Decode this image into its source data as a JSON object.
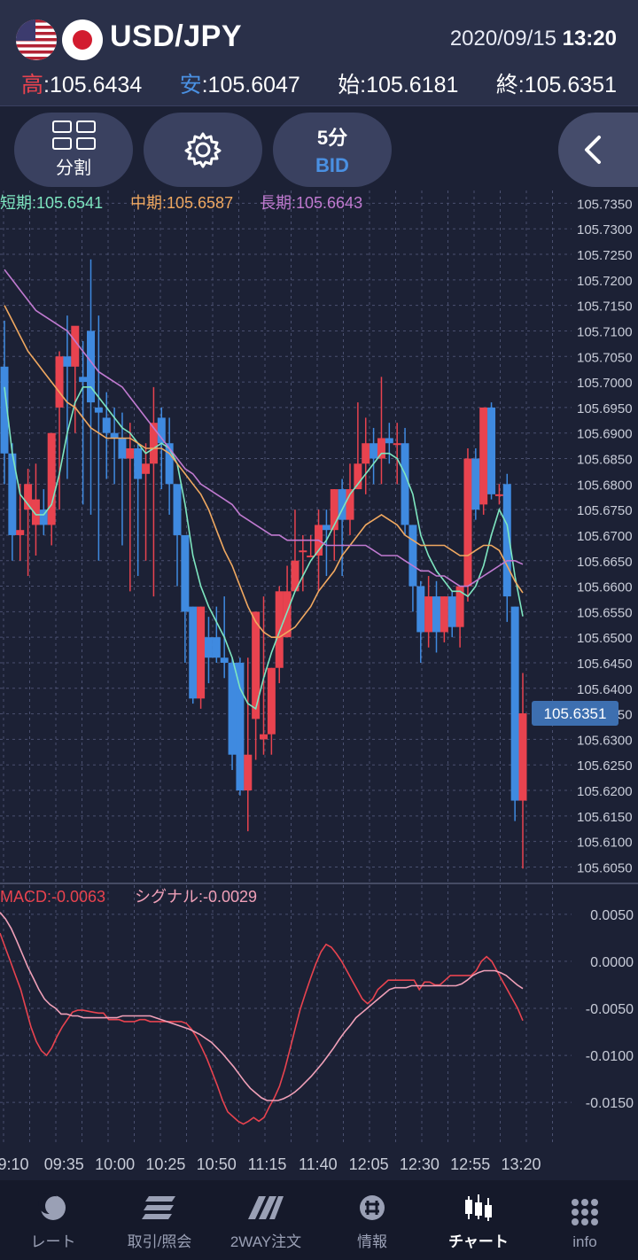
{
  "header": {
    "pair": "USD/JPY",
    "date": "2020/09/15",
    "time": "13:20",
    "high_label": "高",
    "high_value": ":105.6434",
    "low_label": "安",
    "low_value": ":105.6047",
    "open_label": "始",
    "open_value": ":105.6181",
    "close_label": "終",
    "close_value": ":105.6351"
  },
  "toolbar": {
    "split_label": "分割",
    "settings_icon": "gear-icon",
    "timeframe": "5分",
    "price_type": "BID",
    "collapse_icon": "chevron-left-icon"
  },
  "indicators": {
    "short_label": "短期:105.6541",
    "mid_label": "中期:105.6587",
    "long_label": "長期:105.6643",
    "macd_label": "MACD:-0.0063",
    "signal_label": "シグナル:-0.0029",
    "current_price": "105.6351"
  },
  "colors": {
    "background": "#1c2135",
    "up_candle": "#e8434f",
    "down_candle": "#3f8ae0",
    "short_ma": "#7ee6c0",
    "mid_ma": "#f0a860",
    "long_ma": "#c07ad0",
    "macd": "#e8434f",
    "signal": "#f0a0b8"
  },
  "chart_data": {
    "type": "candlestick",
    "price_axis": {
      "labels": [
        "105.7350",
        "105.7300",
        "105.7250",
        "105.7200",
        "105.7150",
        "105.7100",
        "105.7050",
        "105.7000",
        "105.6950",
        "105.6900",
        "105.6850",
        "105.6800",
        "105.6750",
        "105.6700",
        "105.6650",
        "105.6600",
        "105.6550",
        "105.6500",
        "105.6450",
        "105.6400",
        "105.6350",
        "105.6300",
        "105.6250",
        "105.6200",
        "105.6150",
        "105.6100",
        "105.6050"
      ],
      "range": [
        105.603,
        105.7375
      ]
    },
    "macd_axis": {
      "labels": [
        "0.0050",
        "0.0000",
        "-0.0050",
        "-0.0100",
        "-0.0150"
      ],
      "range": [
        -0.0196,
        0.008
      ]
    },
    "time_labels": [
      "9:10",
      "09:35",
      "10:00",
      "10:25",
      "10:50",
      "11:15",
      "11:40",
      "12:05",
      "12:30",
      "12:55",
      "13:20"
    ],
    "candles": [
      {
        "o": 105.703,
        "h": 105.712,
        "l": 105.68,
        "c": 105.686
      },
      {
        "o": 105.686,
        "h": 105.688,
        "l": 105.665,
        "c": 105.67
      },
      {
        "o": 105.67,
        "h": 105.68,
        "l": 105.665,
        "c": 105.671
      },
      {
        "o": 105.675,
        "h": 105.683,
        "l": 105.662,
        "c": 105.68
      },
      {
        "o": 105.672,
        "h": 105.684,
        "l": 105.666,
        "c": 105.677
      },
      {
        "o": 105.675,
        "h": 105.679,
        "l": 105.67,
        "c": 105.672
      },
      {
        "o": 105.672,
        "h": 105.69,
        "l": 105.668,
        "c": 105.69
      },
      {
        "o": 105.695,
        "h": 105.706,
        "l": 105.675,
        "c": 105.705
      },
      {
        "o": 105.705,
        "h": 105.713,
        "l": 105.681,
        "c": 105.703
      },
      {
        "o": 105.703,
        "h": 105.71,
        "l": 105.69,
        "c": 105.711
      },
      {
        "o": 105.701,
        "h": 105.708,
        "l": 105.676,
        "c": 105.7
      },
      {
        "o": 105.71,
        "h": 105.724,
        "l": 105.674,
        "c": 105.696
      },
      {
        "o": 105.695,
        "h": 105.713,
        "l": 105.665,
        "c": 105.694
      },
      {
        "o": 105.693,
        "h": 105.698,
        "l": 105.681,
        "c": 105.69
      },
      {
        "o": 105.69,
        "h": 105.695,
        "l": 105.68,
        "c": 105.689
      },
      {
        "o": 105.689,
        "h": 105.694,
        "l": 105.668,
        "c": 105.685
      },
      {
        "o": 105.685,
        "h": 105.692,
        "l": 105.659,
        "c": 105.687
      },
      {
        "o": 105.687,
        "h": 105.688,
        "l": 105.662,
        "c": 105.681
      },
      {
        "o": 105.682,
        "h": 105.688,
        "l": 105.665,
        "c": 105.684
      },
      {
        "o": 105.684,
        "h": 105.699,
        "l": 105.658,
        "c": 105.692
      },
      {
        "o": 105.693,
        "h": 105.695,
        "l": 105.679,
        "c": 105.688
      },
      {
        "o": 105.688,
        "h": 105.693,
        "l": 105.674,
        "c": 105.68
      },
      {
        "o": 105.68,
        "h": 105.68,
        "l": 105.66,
        "c": 105.67
      },
      {
        "o": 105.67,
        "h": 105.67,
        "l": 105.645,
        "c": 105.655
      },
      {
        "o": 105.656,
        "h": 105.656,
        "l": 105.637,
        "c": 105.638
      },
      {
        "o": 105.638,
        "h": 105.656,
        "l": 105.636,
        "c": 105.656
      },
      {
        "o": 105.65,
        "h": 105.654,
        "l": 105.641,
        "c": 105.646
      },
      {
        "o": 105.65,
        "h": 105.656,
        "l": 105.645,
        "c": 105.646
      },
      {
        "o": 105.646,
        "h": 105.658,
        "l": 105.642,
        "c": 105.645
      },
      {
        "o": 105.645,
        "h": 105.646,
        "l": 105.624,
        "c": 105.627
      },
      {
        "o": 105.645,
        "h": 105.646,
        "l": 105.619,
        "c": 105.62
      },
      {
        "o": 105.62,
        "h": 105.646,
        "l": 105.612,
        "c": 105.627
      },
      {
        "o": 105.634,
        "h": 105.655,
        "l": 105.626,
        "c": 105.655
      },
      {
        "o": 105.63,
        "h": 105.658,
        "l": 105.627,
        "c": 105.631
      },
      {
        "o": 105.631,
        "h": 105.644,
        "l": 105.627,
        "c": 105.644
      },
      {
        "o": 105.644,
        "h": 105.66,
        "l": 105.641,
        "c": 105.659
      },
      {
        "o": 105.65,
        "h": 105.664,
        "l": 105.65,
        "c": 105.659
      },
      {
        "o": 105.659,
        "h": 105.675,
        "l": 105.659,
        "c": 105.665
      },
      {
        "o": 105.667,
        "h": 105.67,
        "l": 105.659,
        "c": 105.667
      },
      {
        "o": 105.666,
        "h": 105.67,
        "l": 105.666,
        "c": 105.666
      },
      {
        "o": 105.666,
        "h": 105.675,
        "l": 105.659,
        "c": 105.672
      },
      {
        "o": 105.672,
        "h": 105.675,
        "l": 105.662,
        "c": 105.671
      },
      {
        "o": 105.671,
        "h": 105.679,
        "l": 105.665,
        "c": 105.679
      },
      {
        "o": 105.679,
        "h": 105.681,
        "l": 105.662,
        "c": 105.673
      },
      {
        "o": 105.673,
        "h": 105.684,
        "l": 105.67,
        "c": 105.679
      },
      {
        "o": 105.679,
        "h": 105.696,
        "l": 105.679,
        "c": 105.684
      },
      {
        "o": 105.684,
        "h": 105.693,
        "l": 105.678,
        "c": 105.688
      },
      {
        "o": 105.688,
        "h": 105.691,
        "l": 105.68,
        "c": 105.685
      },
      {
        "o": 105.685,
        "h": 105.701,
        "l": 105.68,
        "c": 105.689
      },
      {
        "o": 105.689,
        "h": 105.692,
        "l": 105.684,
        "c": 105.688
      },
      {
        "o": 105.688,
        "h": 105.692,
        "l": 105.68,
        "c": 105.688
      },
      {
        "o": 105.688,
        "h": 105.691,
        "l": 105.67,
        "c": 105.672
      },
      {
        "o": 105.672,
        "h": 105.672,
        "l": 105.655,
        "c": 105.66
      },
      {
        "o": 105.66,
        "h": 105.661,
        "l": 105.645,
        "c": 105.651
      },
      {
        "o": 105.651,
        "h": 105.662,
        "l": 105.648,
        "c": 105.658
      },
      {
        "o": 105.658,
        "h": 105.661,
        "l": 105.647,
        "c": 105.651
      },
      {
        "o": 105.651,
        "h": 105.658,
        "l": 105.649,
        "c": 105.658
      },
      {
        "o": 105.658,
        "h": 105.659,
        "l": 105.65,
        "c": 105.652
      },
      {
        "o": 105.652,
        "h": 105.66,
        "l": 105.648,
        "c": 105.66
      },
      {
        "o": 105.66,
        "h": 105.687,
        "l": 105.657,
        "c": 105.685
      },
      {
        "o": 105.685,
        "h": 105.687,
        "l": 105.673,
        "c": 105.675
      },
      {
        "o": 105.676,
        "h": 105.695,
        "l": 105.674,
        "c": 105.695
      },
      {
        "o": 105.695,
        "h": 105.696,
        "l": 105.677,
        "c": 105.678
      },
      {
        "o": 105.678,
        "h": 105.68,
        "l": 105.676,
        "c": 105.678
      },
      {
        "o": 105.68,
        "h": 105.682,
        "l": 105.653,
        "c": 105.658
      },
      {
        "o": 105.656,
        "h": 105.656,
        "l": 105.614,
        "c": 105.618
      },
      {
        "o": 105.618,
        "h": 105.643,
        "l": 105.6047,
        "c": 105.6351
      }
    ],
    "series": [
      {
        "name": "短期",
        "values": [
          105.699,
          105.686,
          105.678,
          105.676,
          105.674,
          105.674,
          105.676,
          105.682,
          105.69,
          105.696,
          105.699,
          105.699,
          105.697,
          105.695,
          105.693,
          105.691,
          105.69,
          105.688,
          105.686,
          105.687,
          105.688,
          105.687,
          105.684,
          105.676,
          105.666,
          105.66,
          105.656,
          105.653,
          105.65,
          105.646,
          105.64,
          105.637,
          105.636,
          105.642,
          105.647,
          105.651,
          105.655,
          105.659,
          105.662,
          105.665,
          105.667,
          105.669,
          105.672,
          105.675,
          105.678,
          105.68,
          105.682,
          105.684,
          105.686,
          105.686,
          105.685,
          105.682,
          105.678,
          105.67,
          105.666,
          105.663,
          105.661,
          105.659,
          105.659,
          105.658,
          105.66,
          105.664,
          105.67,
          105.675,
          105.672,
          105.662,
          105.6541
        ]
      },
      {
        "name": "中期",
        "values": [
          105.715,
          105.712,
          105.709,
          105.706,
          105.704,
          105.702,
          105.7,
          105.698,
          105.696,
          105.695,
          105.693,
          105.691,
          105.69,
          105.689,
          105.689,
          105.689,
          105.689,
          105.688,
          105.687,
          105.687,
          105.687,
          105.686,
          105.684,
          105.682,
          105.68,
          105.678,
          105.675,
          105.671,
          105.667,
          105.664,
          105.66,
          105.656,
          105.653,
          105.651,
          105.65,
          105.65,
          105.651,
          105.652,
          105.654,
          105.656,
          105.659,
          105.661,
          105.663,
          105.666,
          105.668,
          105.67,
          105.672,
          105.673,
          105.674,
          105.673,
          105.672,
          105.67,
          105.669,
          105.668,
          105.668,
          105.668,
          105.668,
          105.667,
          105.666,
          105.666,
          105.667,
          105.668,
          105.668,
          105.667,
          105.664,
          105.661,
          105.6587
        ]
      },
      {
        "name": "長期",
        "values": [
          105.722,
          105.72,
          105.718,
          105.716,
          105.714,
          105.713,
          105.712,
          105.711,
          105.71,
          105.708,
          105.706,
          105.704,
          105.702,
          105.701,
          105.7,
          105.699,
          105.697,
          105.695,
          105.693,
          105.691,
          105.689,
          105.687,
          105.685,
          105.683,
          105.682,
          105.68,
          105.679,
          105.678,
          105.677,
          105.676,
          105.674,
          105.673,
          105.672,
          105.671,
          105.67,
          105.67,
          105.669,
          105.669,
          105.669,
          105.669,
          105.669,
          105.668,
          105.668,
          105.668,
          105.668,
          105.668,
          105.668,
          105.667,
          105.666,
          105.666,
          105.666,
          105.665,
          105.664,
          105.663,
          105.663,
          105.662,
          105.662,
          105.661,
          105.66,
          105.66,
          105.661,
          105.662,
          105.663,
          105.664,
          105.665,
          105.665,
          105.6643
        ]
      },
      {
        "name": "MACD",
        "values": [
          0.003,
          0.0015,
          0.0,
          -0.0015,
          -0.003,
          -0.005,
          -0.007,
          -0.0085,
          -0.0095,
          -0.01,
          -0.0092,
          -0.008,
          -0.007,
          -0.0062,
          -0.0054,
          -0.0052,
          -0.0052,
          -0.0053,
          -0.0054,
          -0.0055,
          -0.0055,
          -0.0062,
          -0.0062,
          -0.0062,
          -0.0064,
          -0.0064,
          -0.0064,
          -0.0062,
          -0.0062,
          -0.0064,
          -0.0064,
          -0.0064,
          -0.0064,
          -0.0064,
          -0.0064,
          -0.0064,
          -0.0066,
          -0.0072,
          -0.0081,
          -0.0092,
          -0.0104,
          -0.0118,
          -0.0132,
          -0.0148,
          -0.016,
          -0.0165,
          -0.017,
          -0.0173,
          -0.017,
          -0.0166,
          -0.017,
          -0.0166,
          -0.0155,
          -0.0145,
          -0.0133,
          -0.0115,
          -0.0094,
          -0.0072,
          -0.0051,
          -0.0034,
          -0.0018,
          -0.0003,
          0.001,
          0.0018,
          0.0015,
          0.0008,
          0.0,
          -0.001,
          -0.002,
          -0.003,
          -0.004,
          -0.0045,
          -0.004,
          -0.003,
          -0.0025,
          -0.002,
          -0.002,
          -0.002,
          -0.002,
          -0.002,
          -0.002,
          -0.003,
          -0.0022,
          -0.0022,
          -0.0025,
          -0.0025,
          -0.002,
          -0.0015,
          -0.0015,
          -0.0015,
          -0.0015,
          -0.0015,
          -0.001,
          0.0,
          0.0005,
          0.0,
          -0.001,
          -0.002,
          -0.003,
          -0.004,
          -0.005,
          -0.0063
        ]
      },
      {
        "name": "シグナル",
        "values": [
          0.0052,
          0.0045,
          0.0035,
          0.0022,
          0.0008,
          -0.0006,
          -0.0018,
          -0.003,
          -0.004,
          -0.0046,
          -0.005,
          -0.0056,
          -0.0056,
          -0.0058,
          -0.0058,
          -0.006,
          -0.006,
          -0.006,
          -0.006,
          -0.006,
          -0.006,
          -0.006,
          -0.0058,
          -0.0058,
          -0.0058,
          -0.0058,
          -0.0058,
          -0.0058,
          -0.006,
          -0.0062,
          -0.0064,
          -0.0066,
          -0.0068,
          -0.007,
          -0.0072,
          -0.0075,
          -0.0078,
          -0.0082,
          -0.0086,
          -0.0092,
          -0.0098,
          -0.0105,
          -0.0112,
          -0.012,
          -0.0128,
          -0.0135,
          -0.014,
          -0.0145,
          -0.0148,
          -0.0148,
          -0.0148,
          -0.0146,
          -0.0143,
          -0.0139,
          -0.0134,
          -0.0128,
          -0.0122,
          -0.0115,
          -0.0108,
          -0.01,
          -0.0092,
          -0.0083,
          -0.0075,
          -0.0068,
          -0.006,
          -0.0055,
          -0.005,
          -0.0045,
          -0.004,
          -0.0035,
          -0.003,
          -0.0028,
          -0.0028,
          -0.0028,
          -0.0026,
          -0.0026,
          -0.0026,
          -0.0026,
          -0.0026,
          -0.0026,
          -0.0026,
          -0.0026,
          -0.0026,
          -0.0024,
          -0.002,
          -0.0015,
          -0.0012,
          -0.001,
          -0.001,
          -0.001,
          -0.0012,
          -0.0015,
          -0.002,
          -0.0025,
          -0.0029
        ]
      }
    ],
    "grid": true
  },
  "bottom_nav": {
    "items": [
      {
        "label": "レート",
        "icon": "rate-icon"
      },
      {
        "label": "取引/照会",
        "icon": "trade-icon"
      },
      {
        "label": "2WAY注文",
        "icon": "twoway-icon"
      },
      {
        "label": "情報",
        "icon": "news-icon"
      },
      {
        "label": "チャート",
        "icon": "chart-icon"
      },
      {
        "label": "info",
        "icon": "info-grid-icon"
      }
    ]
  }
}
